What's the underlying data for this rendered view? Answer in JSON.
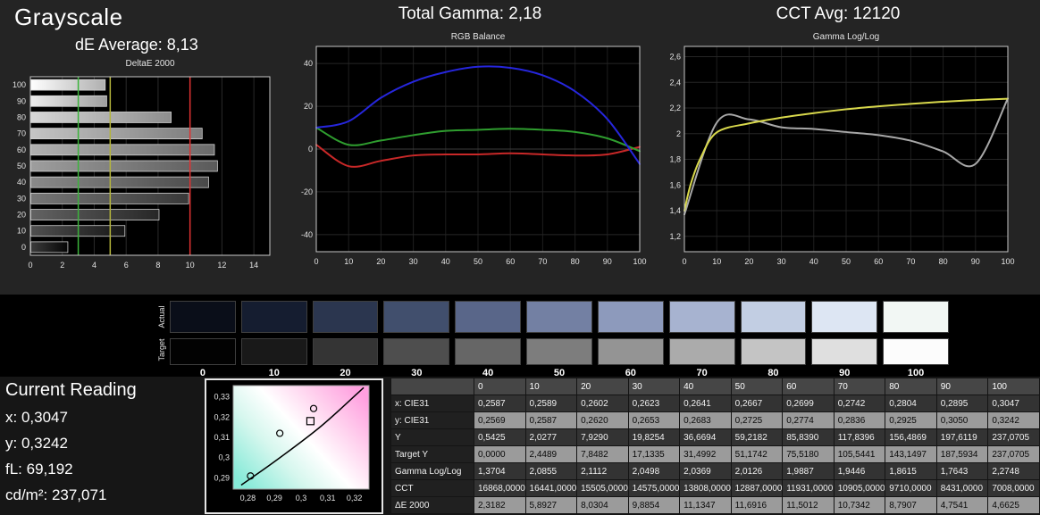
{
  "header": {
    "title": "Grayscale",
    "de_average": "dE Average: 8,13",
    "total_gamma": "Total Gamma: 2,18",
    "cct_avg": "CCT Avg: 12120"
  },
  "chart_data": {
    "deltae": {
      "type": "bar",
      "title": "DeltaE 2000",
      "orientation": "horizontal",
      "categories": [
        100,
        90,
        80,
        70,
        60,
        50,
        40,
        30,
        20,
        10,
        0
      ],
      "values": [
        4.6625,
        4.7541,
        8.7907,
        10.7342,
        11.5012,
        11.6916,
        11.1347,
        9.8854,
        8.0304,
        5.8927,
        2.3182
      ],
      "xlim": [
        0,
        15
      ],
      "xticks": [
        0,
        2,
        4,
        6,
        8,
        10,
        12,
        14
      ],
      "ref_lines": [
        {
          "value": 3,
          "color": "#3cb43c"
        },
        {
          "value": 5,
          "color": "#b4b43c"
        },
        {
          "value": 10,
          "color": "#e03232"
        }
      ]
    },
    "rgb_balance": {
      "type": "line",
      "title": "RGB Balance",
      "x": [
        0,
        10,
        20,
        30,
        40,
        50,
        60,
        70,
        80,
        90,
        100
      ],
      "xtick_labels": [
        "0",
        "10",
        "20",
        "30",
        "40",
        "50",
        "60",
        "70",
        "80",
        "90",
        "100"
      ],
      "ylim": [
        -48,
        48
      ],
      "ytick_values": [
        -40,
        -20,
        0,
        20,
        40
      ],
      "ytick_labels": [
        "-40",
        "-20",
        "0",
        "20",
        "40"
      ],
      "series": [
        {
          "name": "red",
          "color": "#c82828",
          "values": [
            2,
            -8,
            -5.5,
            -3,
            -2.5,
            -2.5,
            -2,
            -2.5,
            -3,
            -2.5,
            1
          ]
        },
        {
          "name": "green",
          "color": "#2f9e2f",
          "values": [
            10,
            2,
            4,
            6.5,
            8.5,
            9,
            9.5,
            9,
            8,
            5,
            -1
          ]
        },
        {
          "name": "blue",
          "color": "#2626dc",
          "values": [
            10,
            13,
            24,
            31.5,
            36,
            38.5,
            38,
            34.5,
            27,
            14,
            -7
          ]
        }
      ]
    },
    "gamma": {
      "type": "line",
      "title": "Gamma Log/Log",
      "x": [
        0,
        10,
        20,
        30,
        40,
        50,
        60,
        70,
        80,
        90,
        100
      ],
      "xtick_labels": [
        "0",
        "10",
        "20",
        "30",
        "40",
        "50",
        "60",
        "70",
        "80",
        "90",
        "100"
      ],
      "ylim": [
        1.08,
        2.68
      ],
      "ytick_values": [
        1.2,
        1.4,
        1.6,
        1.8,
        2.0,
        2.2,
        2.4,
        2.6
      ],
      "ytick_labels": [
        "1,2",
        "1,4",
        "1,6",
        "1,8",
        "2",
        "2,2",
        "2,4",
        "2,6"
      ],
      "series": [
        {
          "name": "measured",
          "color": "#a8a8a8",
          "values": [
            1.3704,
            2.0855,
            2.1112,
            2.0498,
            2.0369,
            2.0126,
            1.9887,
            1.9446,
            1.8615,
            1.7643,
            2.2748
          ]
        },
        {
          "name": "target",
          "color": "#d9d94c",
          "x": [
            0,
            2,
            5,
            10,
            20,
            30,
            40,
            50,
            60,
            70,
            80,
            90,
            100
          ],
          "values": [
            1.4,
            1.61,
            1.81,
            2.01,
            2.08,
            2.125,
            2.16,
            2.19,
            2.213,
            2.232,
            2.249,
            2.262,
            2.272
          ]
        }
      ]
    },
    "cie": {
      "type": "scatter",
      "xlim": [
        0.2745,
        0.3255
      ],
      "ylim": [
        0.2845,
        0.3355
      ],
      "xtick_values": [
        0.28,
        0.29,
        0.3,
        0.31,
        0.32
      ],
      "xtick_labels": [
        "0,28",
        "0,29",
        "0,3",
        "0,31",
        "0,32"
      ],
      "ytick_values": [
        0.29,
        0.3,
        0.31,
        0.32,
        0.33
      ],
      "ytick_labels": [
        "0,29",
        "0,3",
        "0,31",
        "0,32",
        "0,33"
      ],
      "locus": [
        [
          0.2775,
          0.2865
        ],
        [
          0.2905,
          0.2985
        ],
        [
          0.3075,
          0.3155
        ],
        [
          0.3235,
          0.3345
        ]
      ],
      "points": [
        {
          "x": 0.281,
          "y": 0.291,
          "marker": "circle"
        },
        {
          "x": 0.292,
          "y": 0.312,
          "marker": "circle"
        },
        {
          "x": 0.3035,
          "y": 0.318,
          "marker": "square"
        },
        {
          "x": 0.3047,
          "y": 0.3242,
          "marker": "circle"
        }
      ]
    }
  },
  "swatches": {
    "actual_label": "Actual",
    "target_label": "Target",
    "levels": [
      "0",
      "10",
      "20",
      "30",
      "40",
      "50",
      "60",
      "70",
      "80",
      "90",
      "100"
    ],
    "actual_colors": [
      "#0a0e19",
      "#151d30",
      "#2b364f",
      "#414f6d",
      "#596689",
      "#7380a3",
      "#8d9abc",
      "#a7b3d0",
      "#c2cee3",
      "#dde6f3",
      "#f2f7f4"
    ],
    "target_colors": [
      "#020202",
      "#191919",
      "#343434",
      "#4e4e4e",
      "#666666",
      "#7d7d7d",
      "#949494",
      "#ababab",
      "#c4c4c4",
      "#dfdfdf",
      "#fcfcfc"
    ]
  },
  "current_reading": {
    "title": "Current Reading",
    "items": [
      {
        "label": "x:",
        "value": "0,3047"
      },
      {
        "label": "y:",
        "value": "0,3242"
      },
      {
        "label": "fL:",
        "value": "69,192"
      },
      {
        "label": "cd/m²:",
        "value": "237,071"
      }
    ]
  },
  "table": {
    "columns": [
      "0",
      "10",
      "20",
      "30",
      "40",
      "50",
      "60",
      "70",
      "80",
      "90",
      "100"
    ],
    "rows": [
      {
        "label": "x: CIE31",
        "shade": "dark",
        "values": [
          "0,2587",
          "0,2589",
          "0,2602",
          "0,2623",
          "0,2641",
          "0,2667",
          "0,2699",
          "0,2742",
          "0,2804",
          "0,2895",
          "0,3047"
        ]
      },
      {
        "label": "y: CIE31",
        "shade": "light",
        "values": [
          "0,2569",
          "0,2587",
          "0,2620",
          "0,2653",
          "0,2683",
          "0,2725",
          "0,2774",
          "0,2836",
          "0,2925",
          "0,3050",
          "0,3242"
        ]
      },
      {
        "label": "Y",
        "shade": "dark",
        "values": [
          "0,5425",
          "2,0277",
          "7,9290",
          "19,8254",
          "36,6694",
          "59,2182",
          "85,8390",
          "117,8396",
          "156,4869",
          "197,6119",
          "237,0705"
        ]
      },
      {
        "label": "Target Y",
        "shade": "light",
        "values": [
          "0,0000",
          "2,4489",
          "7,8482",
          "17,1335",
          "31,4992",
          "51,1742",
          "75,5180",
          "105,5441",
          "143,1497",
          "187,5934",
          "237,0705"
        ]
      },
      {
        "label": "Gamma Log/Log",
        "shade": "dark",
        "values": [
          "1,3704",
          "2,0855",
          "2,1112",
          "2,0498",
          "2,0369",
          "2,0126",
          "1,9887",
          "1,9446",
          "1,8615",
          "1,7643",
          "2,2748"
        ]
      },
      {
        "label": "CCT",
        "shade": "dark",
        "values": [
          "16868,0000",
          "16441,0000",
          "15505,0000",
          "14575,0000",
          "13808,0000",
          "12887,0000",
          "11931,0000",
          "10905,0000",
          "9710,0000",
          "8431,0000",
          "7008,0000"
        ]
      },
      {
        "label": "ΔE 2000",
        "shade": "light",
        "values": [
          "2,3182",
          "5,8927",
          "8,0304",
          "9,8854",
          "11,1347",
          "11,6916",
          "11,5012",
          "10,7342",
          "8,7907",
          "4,7541",
          "4,6625"
        ]
      }
    ]
  }
}
